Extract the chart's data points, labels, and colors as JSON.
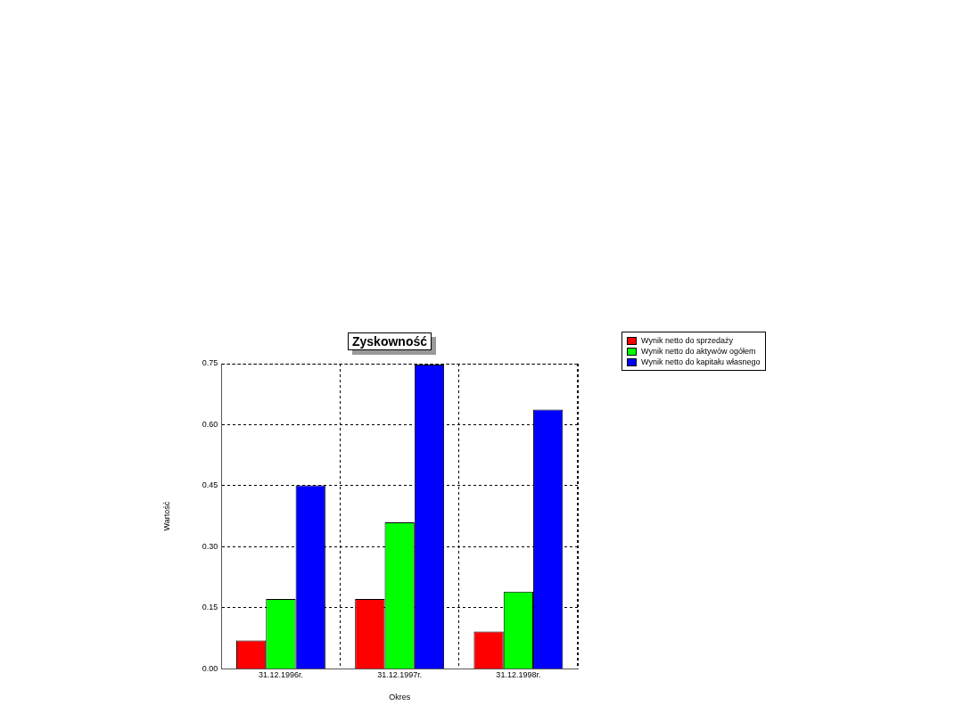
{
  "chart_data": {
    "type": "bar",
    "title": "Zyskowność",
    "xlabel": "Okres",
    "ylabel": "Wartość",
    "categories": [
      "31.12.1996r.",
      "31.12.1997r.",
      "31.12.1998r."
    ],
    "series": [
      {
        "name": "Wynik netto do sprzedaży",
        "color": "#ff0000",
        "values": [
          0.07,
          0.172,
          0.092
        ]
      },
      {
        "name": "Wynik netto do aktywów ogółem",
        "color": "#00ff00",
        "values": [
          0.172,
          0.36,
          0.19
        ]
      },
      {
        "name": "Wynik netto do kapitału własnego",
        "color": "#0000ff",
        "values": [
          0.451,
          0.748,
          0.637
        ]
      }
    ],
    "ylim": [
      0,
      0.75
    ],
    "yticks": [
      {
        "value": 0,
        "label": "0.00"
      },
      {
        "value": 0.15,
        "label": "0.15"
      },
      {
        "value": 0.3,
        "label": "0.30"
      },
      {
        "value": 0.45,
        "label": "0.45"
      },
      {
        "value": 0.6,
        "label": "0.60"
      },
      {
        "value": 0.75,
        "label": "0.75"
      }
    ],
    "grid": true,
    "legend": "top right"
  }
}
